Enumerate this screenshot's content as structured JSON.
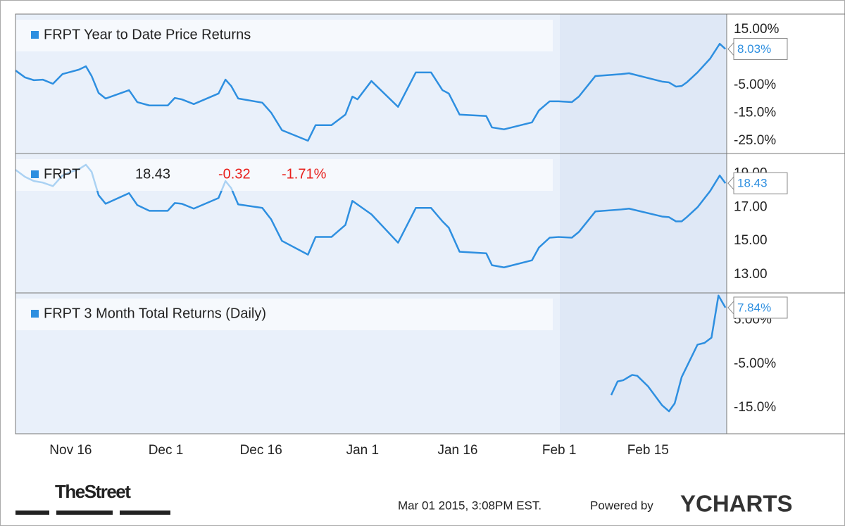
{
  "chart_data": [
    {
      "type": "line",
      "title": "FRPT Year to Date Price Returns",
      "xlim": [
        -8.7,
        103.4
      ],
      "ylim": [
        -29.6,
        20.6
      ],
      "yticks": [
        {
          "value": 15,
          "label": "15.00%"
        },
        {
          "value": -5,
          "label": "-5.00%"
        },
        {
          "value": -15,
          "label": "-15.0%"
        },
        {
          "value": -25,
          "label": "-25.0%"
        }
      ],
      "grid": false,
      "series": [
        {
          "name": "FRPT Year to Date Price Returns",
          "color": "#2e8fe0",
          "x": [
            -8.7,
            -7.2,
            -5.8,
            -4.4,
            -2.8,
            -1.3,
            0,
            1.3,
            2.4,
            3.3,
            4.4,
            5.5,
            9.2,
            10.5,
            12.4,
            15.3,
            16.4,
            17.5,
            19.4,
            23.3,
            24.4,
            25.3,
            26.4,
            30.2,
            31.6,
            33.3,
            37.4,
            38.6,
            41.1,
            43.3,
            44.4,
            45.2,
            47.4,
            51.6,
            54.4,
            56.8,
            58.6,
            59.6,
            61.3,
            65.5,
            66.4,
            68.3,
            72.7,
            73.8,
            75.5,
            76.9,
            79,
            80.1,
            82.7,
            86.8,
            88,
            93.2,
            94.3,
            95.4,
            96.3,
            97.1,
            98.8,
            100.8,
            102.3,
            103.2
          ],
          "values": [
            0.3,
            -2.2,
            -3.2,
            -3.0,
            -4.5,
            -1.0,
            -0.2,
            0.6,
            1.8,
            -1.7,
            -7.8,
            -9.8,
            -6.8,
            -11.1,
            -12.3,
            -12.3,
            -9.6,
            -10.1,
            -11.8,
            -8.0,
            -3.0,
            -5.3,
            -9.8,
            -11.3,
            -14.9,
            -21.2,
            -25.0,
            -19.4,
            -19.4,
            -15.6,
            -9.1,
            -10.1,
            -3.5,
            -12.8,
            -0.4,
            -0.4,
            -6.8,
            -8.0,
            -15.6,
            -16.1,
            -20.2,
            -20.9,
            -18.4,
            -14.1,
            -10.8,
            -10.8,
            -11.1,
            -9.1,
            -1.7,
            -1.0,
            -0.7,
            -3.7,
            -4.0,
            -5.5,
            -5.3,
            -4.0,
            -0.4,
            4.6,
            9.9,
            8.03
          ],
          "value_labels": [
            null,
            null,
            null,
            null,
            null,
            null,
            null,
            null,
            null,
            null,
            null,
            null,
            null,
            null,
            null,
            null,
            null,
            null,
            null,
            null,
            null,
            null,
            null,
            null,
            null,
            null,
            null,
            null,
            null,
            null,
            null,
            null,
            null,
            null,
            null,
            null,
            null,
            null,
            null,
            null,
            null,
            null,
            null,
            null,
            null,
            null,
            null,
            null,
            null,
            null,
            null,
            null,
            null,
            null,
            null,
            null,
            null,
            null,
            null,
            "8.03%"
          ]
        }
      ]
    },
    {
      "type": "line",
      "title": "FRPT",
      "change": -0.32,
      "change_percent": {
        "value": -1.71,
        "label": "-1.71%"
      },
      "xlim": [
        -8.7,
        103.4
      ],
      "ylim": [
        11.9,
        20.2
      ],
      "yticks": [
        {
          "value": 19,
          "label": "19.00"
        },
        {
          "value": 17,
          "label": "17.00"
        },
        {
          "value": 15,
          "label": "15.00"
        },
        {
          "value": 13,
          "label": "13.00"
        }
      ],
      "grid": false,
      "series": [
        {
          "name": "FRPT",
          "color": "#2e8fe0",
          "x": [
            -8.7,
            -7.2,
            -5.8,
            -4.4,
            -2.8,
            -1.3,
            0,
            1.3,
            2.4,
            3.3,
            4.4,
            5.5,
            9.2,
            10.5,
            12.4,
            15.3,
            16.4,
            17.5,
            19.4,
            23.3,
            24.4,
            25.3,
            26.4,
            30.2,
            31.6,
            33.3,
            37.4,
            38.6,
            41.1,
            43.3,
            44.4,
            47.4,
            51.6,
            54.4,
            56.8,
            58.6,
            59.6,
            61.3,
            65.5,
            66.4,
            68.3,
            72.7,
            73.8,
            75.5,
            76.9,
            79,
            80.1,
            82.7,
            86.8,
            88,
            93.2,
            94.3,
            95.4,
            96.3,
            97.1,
            98.8,
            100.8,
            102.3,
            103.2
          ],
          "values": [
            19.23,
            18.81,
            18.56,
            18.47,
            18.26,
            18.89,
            19.11,
            19.27,
            19.53,
            19.11,
            17.72,
            17.21,
            17.84,
            17.13,
            16.79,
            16.79,
            17.25,
            17.21,
            16.92,
            17.55,
            18.56,
            18.14,
            17.17,
            16.96,
            16.28,
            15.0,
            14.18,
            15.23,
            15.23,
            15.95,
            17.38,
            16.58,
            14.89,
            16.96,
            16.96,
            16.16,
            15.78,
            14.35,
            14.26,
            13.55,
            13.42,
            13.84,
            14.6,
            15.19,
            15.23,
            15.19,
            15.53,
            16.75,
            16.87,
            16.92,
            16.45,
            16.41,
            16.16,
            16.16,
            16.41,
            17.0,
            17.97,
            18.89,
            18.43
          ]
        }
      ]
    },
    {
      "type": "line",
      "title": "FRPT 3 Month Total Returns (Daily)",
      "xlim": [
        -8.7,
        103.4
      ],
      "ylim": [
        -20.6,
        11.2
      ],
      "xticks": [
        {
          "value": 0,
          "label": "Nov 16"
        },
        {
          "value": 15,
          "label": "Dec 1"
        },
        {
          "value": 30,
          "label": "Dec 16"
        },
        {
          "value": 46,
          "label": "Jan 1"
        },
        {
          "value": 61,
          "label": "Jan 16"
        },
        {
          "value": 77,
          "label": "Feb 1"
        },
        {
          "value": 91,
          "label": "Feb 15"
        }
      ],
      "yticks": [
        {
          "value": 5,
          "label": "5.00%"
        },
        {
          "value": -5,
          "label": "-5.00%"
        },
        {
          "value": -15,
          "label": "-15.0%"
        }
      ],
      "grid": false,
      "series": [
        {
          "name": "FRPT 3 Month Total Returns (Daily)",
          "color": "#2e8fe0",
          "x": [
            85.2,
            86.2,
            87.1,
            88.5,
            89.3,
            91.0,
            93.2,
            94.3,
            95.2,
            96.3,
            98.8,
            99.9,
            101.0,
            102.1,
            103.2
          ],
          "values": [
            -12.1,
            -9.0,
            -8.7,
            -7.5,
            -7.7,
            -10.1,
            -14.4,
            -15.8,
            -14.0,
            -8.0,
            -0.6,
            -0.2,
            1.0,
            10.6,
            7.84
          ],
          "value_labels": [
            null,
            null,
            null,
            null,
            null,
            null,
            null,
            null,
            null,
            null,
            null,
            null,
            null,
            null,
            "7.84%"
          ]
        }
      ]
    }
  ],
  "footer": {
    "brand": "TheStreet",
    "timestamp": "Mar 01 2015, 3:08PM EST.",
    "powered_by": "Powered by",
    "provider": "YCHARTS"
  }
}
